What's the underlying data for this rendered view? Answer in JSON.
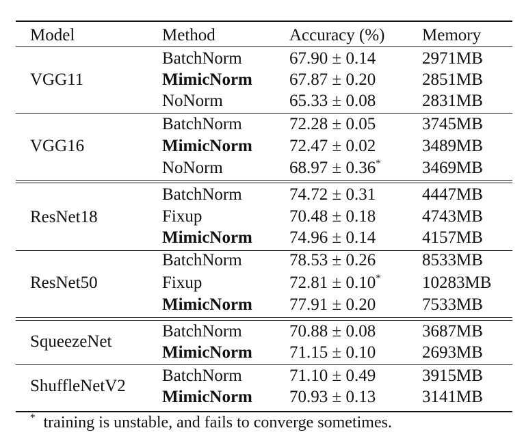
{
  "table": {
    "headers": {
      "model": "Model",
      "method": "Method",
      "accuracy": "Accuracy (%)",
      "memory": "Memory"
    },
    "groups": [
      {
        "model": "VGG11",
        "rows": [
          {
            "method": "BatchNorm",
            "accuracy": "67.90 ± 0.14",
            "memory": "2971MB",
            "note": ""
          },
          {
            "method": "MimicNorm",
            "accuracy": "67.87 ± 0.20",
            "memory": "2851MB",
            "note": ""
          },
          {
            "method": "NoNorm",
            "accuracy": "65.33 ± 0.08",
            "memory": "2831MB",
            "note": ""
          }
        ]
      },
      {
        "model": "VGG16",
        "rows": [
          {
            "method": "BatchNorm",
            "accuracy": "72.28 ± 0.05",
            "memory": "3745MB",
            "note": ""
          },
          {
            "method": "MimicNorm",
            "accuracy": "72.47 ± 0.02",
            "memory": "3489MB",
            "note": ""
          },
          {
            "method": "NoNorm",
            "accuracy": "68.97 ± 0.36",
            "memory": "3469MB",
            "note": "*"
          }
        ]
      },
      {
        "model": "ResNet18",
        "rows": [
          {
            "method": "BatchNorm",
            "accuracy": "74.72 ± 0.31",
            "memory": "4447MB",
            "note": ""
          },
          {
            "method": "Fixup",
            "accuracy": "70.48 ± 0.18",
            "memory": "4743MB",
            "note": ""
          },
          {
            "method": "MimicNorm",
            "accuracy": "74.96 ± 0.14",
            "memory": "4157MB",
            "note": ""
          }
        ]
      },
      {
        "model": "ResNet50",
        "rows": [
          {
            "method": "BatchNorm",
            "accuracy": "78.53 ± 0.26",
            "memory": "8533MB",
            "note": ""
          },
          {
            "method": "Fixup",
            "accuracy": "72.81 ± 0.10",
            "memory": "10283MB",
            "note": "*"
          },
          {
            "method": "MimicNorm",
            "accuracy": "77.91 ± 0.20",
            "memory": "7533MB",
            "note": ""
          }
        ]
      },
      {
        "model": "SqueezeNet",
        "rows": [
          {
            "method": "BatchNorm",
            "accuracy": "70.88 ± 0.08",
            "memory": "3687MB",
            "note": ""
          },
          {
            "method": "MimicNorm",
            "accuracy": "71.15 ± 0.10",
            "memory": "2693MB",
            "note": ""
          }
        ]
      },
      {
        "model": "ShuffleNetV2",
        "rows": [
          {
            "method": "BatchNorm",
            "accuracy": "71.10 ± 0.49",
            "memory": "3915MB",
            "note": ""
          },
          {
            "method": "MimicNorm",
            "accuracy": "70.93 ± 0.13",
            "memory": "3141MB",
            "note": ""
          }
        ]
      }
    ],
    "footnote": {
      "mark": "*",
      "text": "training is unstable, and fails to converge sometimes."
    }
  }
}
